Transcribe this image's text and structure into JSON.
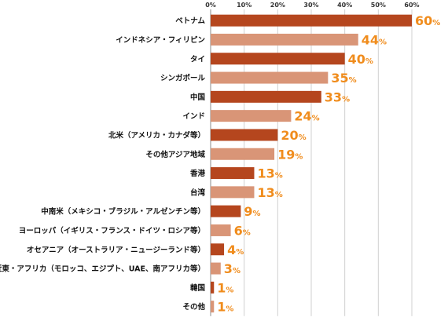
{
  "chart_data": {
    "type": "bar",
    "orientation": "horizontal",
    "categories": [
      "ベトナム",
      "インドネシア・フィリピン",
      "タイ",
      "シンガポール",
      "中国",
      "インド",
      "北米（アメリカ・カナダ等）",
      "その他アジア地域",
      "香港",
      "台湾",
      "中南米（メキシコ・ブラジル・アルゼンチン等）",
      "ヨーロッパ（イギリス・フランス・ドイツ・ロシア等）",
      "オセアニア（オーストラリア・ニュージーランド等）",
      "中近東・アフリカ（モロッコ、エジプト、UAE、南アフリカ等）",
      "韓国",
      "その他"
    ],
    "values": [
      60,
      44,
      40,
      35,
      33,
      24,
      20,
      19,
      13,
      13,
      9,
      6,
      4,
      3,
      1,
      1
    ],
    "value_unit": "%",
    "xlim": [
      0,
      60
    ],
    "xticks": [
      "0%",
      "10%",
      "20%",
      "30%",
      "40%",
      "50%",
      "60%"
    ],
    "xaxis_position": "top",
    "grid": true,
    "colors": {
      "dark_bar": "#b5461e",
      "light_bar": "#d99577",
      "value_label": "#f08c1c",
      "grid": "#d0d0d0"
    },
    "bar_shade_pattern": "alternating dark/light starting with dark"
  }
}
